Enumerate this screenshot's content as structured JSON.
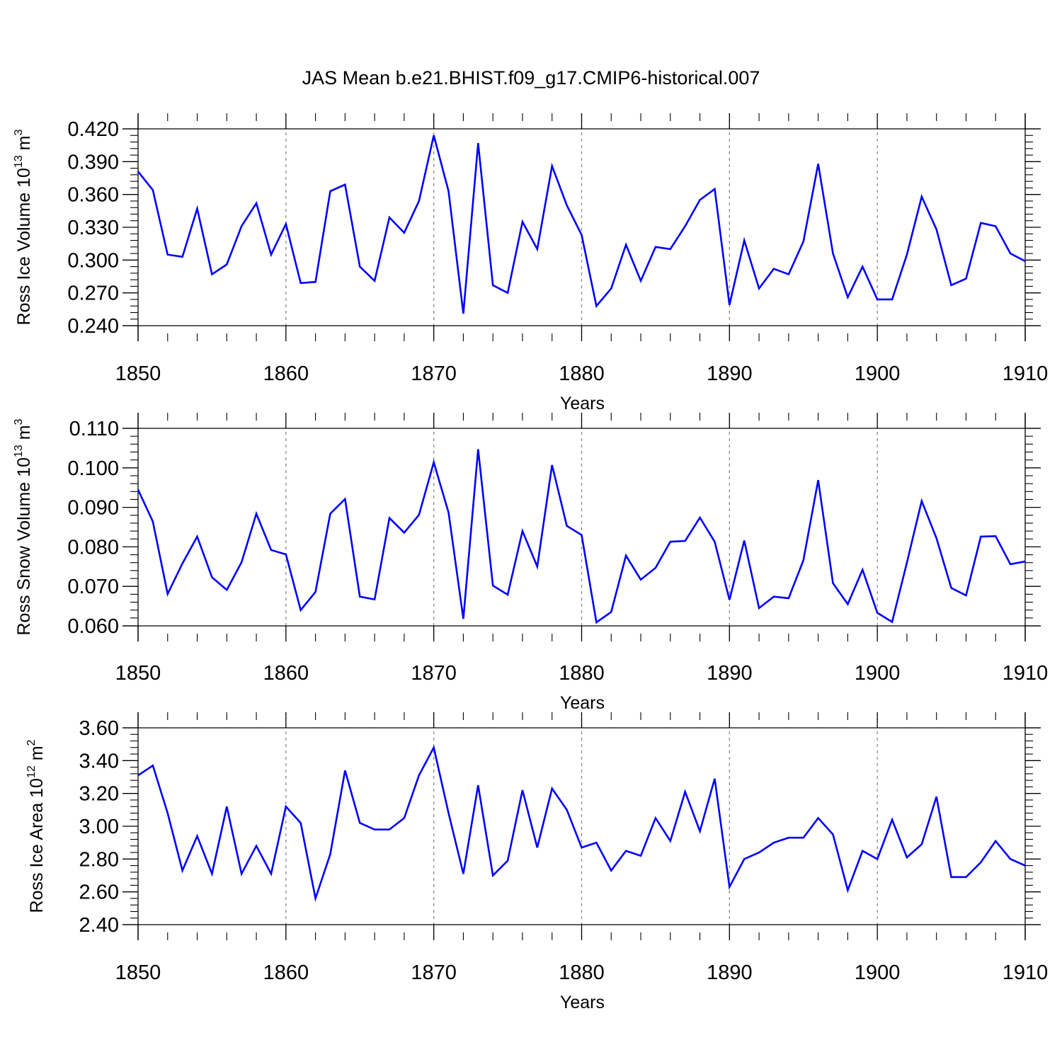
{
  "title": "JAS Mean b.e21.BHIST.f09_g17.CMIP6-historical.007",
  "colors": {
    "series": "#0000ff",
    "axis": "#000000",
    "grid": "#888888"
  },
  "chart_data": [
    {
      "type": "line",
      "title": "",
      "xlabel": "Years",
      "ylabel": {
        "text": "Ross Ice Volume 10",
        "exp": "13",
        "unit": " m",
        "unit_exp": "3"
      },
      "xlim": [
        1850,
        1910
      ],
      "xticks": [
        1850,
        1860,
        1870,
        1880,
        1890,
        1900,
        1910
      ],
      "xtick_labels": [
        "1850",
        "1860",
        "1870",
        "1880",
        "1890",
        "1900",
        "1910"
      ],
      "ylim": [
        0.24,
        0.42
      ],
      "yticks": [
        0.24,
        0.27,
        0.3,
        0.33,
        0.36,
        0.39,
        0.42
      ],
      "ytick_labels": [
        "0.240",
        "0.270",
        "0.300",
        "0.330",
        "0.360",
        "0.390",
        "0.420"
      ],
      "grid": "vertical dashed at major x ticks",
      "x_start": 1850,
      "series": [
        {
          "name": "Ross Ice Volume",
          "values": [
            0.381,
            0.364,
            0.305,
            0.303,
            0.347,
            0.287,
            0.296,
            0.331,
            0.352,
            0.305,
            0.333,
            0.279,
            0.28,
            0.363,
            0.369,
            0.294,
            0.281,
            0.339,
            0.325,
            0.354,
            0.414,
            0.363,
            0.251,
            0.407,
            0.277,
            0.27,
            0.335,
            0.31,
            0.386,
            0.35,
            0.323,
            0.258,
            0.274,
            0.314,
            0.281,
            0.312,
            0.31,
            0.331,
            0.355,
            0.365,
            0.259,
            0.318,
            0.274,
            0.292,
            0.287,
            0.317,
            0.388,
            0.306,
            0.266,
            0.294,
            0.264,
            0.264,
            0.305,
            0.358,
            0.328,
            0.277,
            0.283,
            0.334,
            0.331,
            0.306,
            0.299
          ]
        }
      ]
    },
    {
      "type": "line",
      "title": "",
      "xlabel": "Years",
      "ylabel": {
        "text": "Ross Snow Volume 10",
        "exp": "13",
        "unit": " m",
        "unit_exp": "3"
      },
      "xlim": [
        1850,
        1910
      ],
      "xticks": [
        1850,
        1860,
        1870,
        1880,
        1890,
        1900,
        1910
      ],
      "xtick_labels": [
        "1850",
        "1860",
        "1870",
        "1880",
        "1890",
        "1900",
        "1910"
      ],
      "ylim": [
        0.06,
        0.11
      ],
      "yticks": [
        0.06,
        0.07,
        0.08,
        0.09,
        0.1,
        0.11
      ],
      "ytick_labels": [
        "0.060",
        "0.070",
        "0.080",
        "0.090",
        "0.100",
        "0.110"
      ],
      "grid": "vertical dashed at major x ticks",
      "x_start": 1850,
      "series": [
        {
          "name": "Ross Snow Volume",
          "values": [
            0.0945,
            0.0864,
            0.0681,
            0.0758,
            0.0826,
            0.0723,
            0.0691,
            0.0761,
            0.0884,
            0.0792,
            0.0781,
            0.064,
            0.0686,
            0.0884,
            0.0921,
            0.0674,
            0.0667,
            0.0873,
            0.0836,
            0.0881,
            0.1014,
            0.0887,
            0.0618,
            0.1047,
            0.0702,
            0.0679,
            0.084,
            0.075,
            0.1007,
            0.0853,
            0.083,
            0.0609,
            0.0635,
            0.0778,
            0.0717,
            0.0747,
            0.0813,
            0.0815,
            0.0874,
            0.0813,
            0.0666,
            0.0816,
            0.0645,
            0.0674,
            0.067,
            0.0766,
            0.0969,
            0.0708,
            0.0655,
            0.0742,
            0.0633,
            0.061,
            0.076,
            0.0916,
            0.0822,
            0.0696,
            0.0677,
            0.0826,
            0.0827,
            0.0756,
            0.0763
          ]
        }
      ]
    },
    {
      "type": "line",
      "title": "",
      "xlabel": "Years",
      "ylabel": {
        "text": "Ross Ice Area 10",
        "exp": "12",
        "unit": " m",
        "unit_exp": "2"
      },
      "xlim": [
        1850,
        1910
      ],
      "xticks": [
        1850,
        1860,
        1870,
        1880,
        1890,
        1900,
        1910
      ],
      "xtick_labels": [
        "1850",
        "1860",
        "1870",
        "1880",
        "1890",
        "1900",
        "1910"
      ],
      "ylim": [
        2.4,
        3.6
      ],
      "yticks": [
        2.4,
        2.6,
        2.8,
        3.0,
        3.2,
        3.4,
        3.6
      ],
      "ytick_labels": [
        "2.40",
        "2.60",
        "2.80",
        "3.00",
        "3.20",
        "3.40",
        "3.60"
      ],
      "grid": "vertical dashed at major x ticks",
      "x_start": 1850,
      "series": [
        {
          "name": "Ross Ice Area",
          "values": [
            3.31,
            3.37,
            3.08,
            2.73,
            2.94,
            2.71,
            3.12,
            2.71,
            2.88,
            2.71,
            3.12,
            3.02,
            2.56,
            2.83,
            3.34,
            3.02,
            2.98,
            2.98,
            3.05,
            3.31,
            3.48,
            3.08,
            2.71,
            3.25,
            2.7,
            2.79,
            3.22,
            2.87,
            3.23,
            3.1,
            2.87,
            2.9,
            2.73,
            2.85,
            2.82,
            3.05,
            2.91,
            3.21,
            2.97,
            3.29,
            2.63,
            2.8,
            2.84,
            2.9,
            2.93,
            2.93,
            3.05,
            2.95,
            2.61,
            2.85,
            2.8,
            3.04,
            2.81,
            2.89,
            3.18,
            2.69,
            2.69,
            2.78,
            2.91,
            2.8,
            2.76
          ]
        }
      ]
    }
  ]
}
